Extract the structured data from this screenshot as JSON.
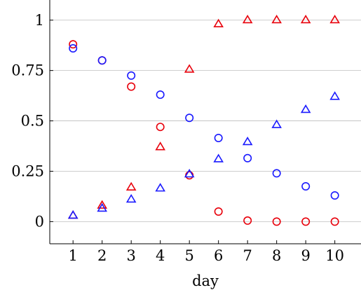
{
  "chart_data": {
    "type": "scatter",
    "title": "",
    "xlabel": "day",
    "ylabel": "",
    "x": [
      1,
      2,
      3,
      4,
      5,
      6,
      7,
      8,
      9,
      10
    ],
    "xlim": [
      0.2,
      10.9
    ],
    "ylim": [
      -0.11,
      1.1
    ],
    "x_ticks": [
      1,
      2,
      3,
      4,
      5,
      6,
      7,
      8,
      9,
      10
    ],
    "x_tick_labels": [
      "1",
      "2",
      "3",
      "4",
      "5",
      "6",
      "7",
      "8",
      "9",
      "10"
    ],
    "y_ticks": [
      0,
      0.25,
      0.5,
      0.75,
      1
    ],
    "y_tick_labels": [
      "0",
      "0.25",
      "0.5",
      "0.75",
      "1"
    ],
    "grid": "horizontal",
    "series": [
      {
        "marker": "circle",
        "color": "#e8000b",
        "values": [
          0.88,
          0.8,
          0.67,
          0.47,
          0.23,
          0.05,
          0.005,
          0.0,
          0.0,
          0.0
        ]
      },
      {
        "marker": "triangle",
        "color": "#e8000b",
        "values": [
          0.03,
          0.08,
          0.17,
          0.37,
          0.755,
          0.98,
          1.0,
          1.0,
          1.0,
          1.0
        ]
      },
      {
        "marker": "circle",
        "color": "#1a1aff",
        "values": [
          0.86,
          0.8,
          0.725,
          0.63,
          0.515,
          0.415,
          0.315,
          0.24,
          0.175,
          0.13
        ]
      },
      {
        "marker": "triangle",
        "color": "#1a1aff",
        "values": [
          0.03,
          0.065,
          0.11,
          0.165,
          0.235,
          0.31,
          0.395,
          0.48,
          0.555,
          0.62
        ]
      }
    ]
  }
}
